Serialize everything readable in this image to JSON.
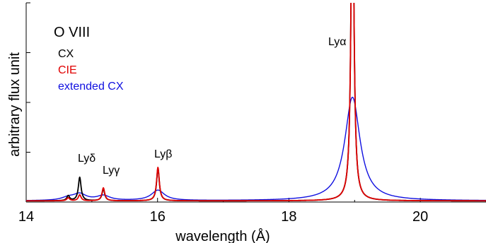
{
  "chart_data": {
    "type": "line",
    "title": "O VIII",
    "xlabel": "wavelength (Å)",
    "ylabel": "arbitrary flux unit",
    "xlim": [
      14.0,
      21.0
    ],
    "ylim": [
      0.0,
      1.0
    ],
    "x_ticks": [
      14,
      16,
      18,
      20
    ],
    "x_tick_labels": [
      "14",
      "16",
      "18",
      "20"
    ],
    "y_ticks": [
      0.0,
      0.25,
      0.5,
      0.75,
      1.0
    ],
    "grid": false,
    "legend_position": "top-left",
    "series": [
      {
        "name": "CX",
        "color": "#000000",
        "baseline": 0.006,
        "lines": [
          {
            "center": 14.64,
            "height": 0.025,
            "width": 0.025
          },
          {
            "center": 14.815,
            "height": 0.118,
            "width": 0.025
          },
          {
            "center": 15.175,
            "height": 0.058,
            "width": 0.025
          },
          {
            "center": 16.006,
            "height": 0.162,
            "width": 0.025
          },
          {
            "center": 18.967,
            "height": 1.8,
            "width": 0.025
          }
        ]
      },
      {
        "name": "CIE",
        "color": "#e00000",
        "baseline": 0.006,
        "lines": [
          {
            "center": 14.64,
            "height": 0.015,
            "width": 0.025
          },
          {
            "center": 14.815,
            "height": 0.03,
            "width": 0.025
          },
          {
            "center": 15.175,
            "height": 0.065,
            "width": 0.025
          },
          {
            "center": 16.006,
            "height": 0.168,
            "width": 0.025
          },
          {
            "center": 18.967,
            "height": 1.8,
            "width": 0.025
          }
        ]
      },
      {
        "name": "extended CX",
        "color": "#1010e0",
        "baseline": 0.006,
        "lines": [
          {
            "center": 14.64,
            "height": 0.014,
            "width": 0.12
          },
          {
            "center": 14.815,
            "height": 0.032,
            "width": 0.12
          },
          {
            "center": 15.175,
            "height": 0.024,
            "width": 0.12
          },
          {
            "center": 16.006,
            "height": 0.052,
            "width": 0.12
          },
          {
            "center": 18.967,
            "height": 0.52,
            "width": 0.14
          }
        ]
      }
    ],
    "annotations": [
      {
        "text": "Lyα",
        "x": 18.77,
        "y": 0.83
      },
      {
        "text": "Lyβ",
        "x": 16.04,
        "y": 0.235
      },
      {
        "text": "Lyγ",
        "x": 15.2,
        "y": 0.155
      },
      {
        "text": "Lyδ",
        "x": 14.84,
        "y": 0.215
      }
    ]
  }
}
